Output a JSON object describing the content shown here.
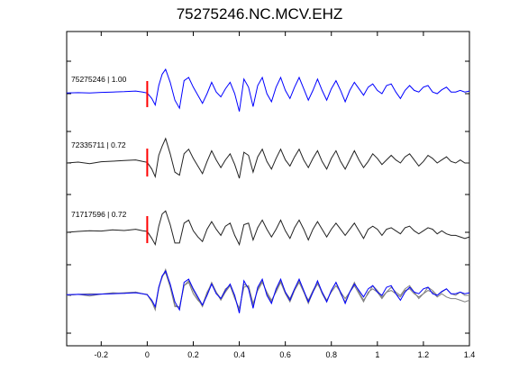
{
  "chart_data": {
    "type": "line",
    "title": "75275246.NC.MCV.EHZ",
    "xlim": [
      -0.35,
      1.4
    ],
    "x_ticks": [
      "-0.2",
      "0",
      "0.2",
      "0.4",
      "0.6",
      "0.8",
      "1",
      "1.2",
      "1.4"
    ],
    "x_tick_values": [
      -0.2,
      0,
      0.2,
      0.4,
      0.6,
      0.8,
      1.0,
      1.2,
      1.4
    ],
    "ylabel": "",
    "xlabel": "",
    "grid": false,
    "pick_time": 0,
    "colors": {
      "blue": "#0000ff",
      "black": "#222222",
      "gray": "#808080",
      "pick": "#ff0000"
    },
    "traces": [
      {
        "label": "75275246 | 1.00",
        "color": "#0000ff",
        "baseline": 0,
        "x": [
          -0.35,
          -0.3,
          -0.25,
          -0.2,
          -0.15,
          -0.1,
          -0.05,
          -0.02,
          0,
          0.02,
          0.035,
          0.05,
          0.065,
          0.08,
          0.1,
          0.12,
          0.14,
          0.16,
          0.18,
          0.2,
          0.22,
          0.24,
          0.26,
          0.28,
          0.3,
          0.32,
          0.34,
          0.36,
          0.38,
          0.4,
          0.42,
          0.44,
          0.46,
          0.48,
          0.5,
          0.52,
          0.54,
          0.56,
          0.58,
          0.6,
          0.62,
          0.64,
          0.66,
          0.68,
          0.7,
          0.72,
          0.74,
          0.76,
          0.78,
          0.8,
          0.82,
          0.84,
          0.86,
          0.88,
          0.9,
          0.92,
          0.94,
          0.96,
          0.98,
          1.0,
          1.02,
          1.04,
          1.06,
          1.08,
          1.1,
          1.12,
          1.14,
          1.16,
          1.18,
          1.2,
          1.22,
          1.24,
          1.26,
          1.28,
          1.3,
          1.32,
          1.34,
          1.36,
          1.38,
          1.4
        ],
        "y": [
          0.02,
          0.03,
          0.02,
          0.04,
          0.05,
          0.06,
          0.08,
          0.05,
          0.02,
          -0.15,
          -0.35,
          0.25,
          0.6,
          0.75,
          0.35,
          -0.2,
          -0.45,
          0.4,
          0.5,
          0.2,
          -0.05,
          -0.3,
          0.0,
          0.35,
          0.05,
          -0.1,
          0.15,
          0.35,
          0.0,
          -0.55,
          0.45,
          0.2,
          -0.4,
          0.25,
          0.5,
          0.0,
          -0.25,
          0.2,
          0.5,
          0.1,
          -0.15,
          0.2,
          0.5,
          0.15,
          -0.2,
          0.1,
          0.45,
          0.1,
          -0.2,
          0.15,
          0.4,
          0.1,
          -0.25,
          0.1,
          0.35,
          0.15,
          -0.05,
          0.2,
          0.3,
          0.1,
          0.0,
          0.25,
          0.3,
          0.05,
          -0.15,
          0.1,
          0.25,
          0.1,
          0.05,
          0.2,
          0.25,
          0.05,
          0.0,
          0.12,
          0.2,
          0.05,
          0.05,
          0.1,
          0.05,
          0.08
        ]
      },
      {
        "label": "72335711 | 0.72",
        "color": "#222222",
        "baseline": 1,
        "x": [
          -0.35,
          -0.3,
          -0.25,
          -0.2,
          -0.15,
          -0.1,
          -0.05,
          -0.02,
          0,
          0.02,
          0.035,
          0.05,
          0.065,
          0.08,
          0.1,
          0.12,
          0.14,
          0.16,
          0.18,
          0.2,
          0.22,
          0.24,
          0.26,
          0.28,
          0.3,
          0.32,
          0.34,
          0.36,
          0.38,
          0.4,
          0.42,
          0.44,
          0.46,
          0.48,
          0.5,
          0.52,
          0.54,
          0.56,
          0.58,
          0.6,
          0.62,
          0.64,
          0.66,
          0.68,
          0.7,
          0.72,
          0.74,
          0.76,
          0.78,
          0.8,
          0.82,
          0.84,
          0.86,
          0.88,
          0.9,
          0.92,
          0.94,
          0.96,
          0.98,
          1.0,
          1.02,
          1.04,
          1.06,
          1.08,
          1.1,
          1.12,
          1.14,
          1.16,
          1.18,
          1.2,
          1.22,
          1.24,
          1.26,
          1.28,
          1.3,
          1.32,
          1.34,
          1.36,
          1.38,
          1.4
        ],
        "y": [
          0.0,
          0.03,
          -0.02,
          0.04,
          0.06,
          0.08,
          0.1,
          0.05,
          0.02,
          -0.2,
          -0.45,
          0.25,
          0.55,
          0.8,
          0.3,
          -0.3,
          -0.4,
          0.3,
          0.45,
          0.15,
          -0.1,
          -0.35,
          0.05,
          0.4,
          0.1,
          -0.15,
          0.1,
          0.3,
          -0.05,
          -0.5,
          0.35,
          0.25,
          -0.3,
          0.2,
          0.45,
          0.05,
          -0.2,
          0.15,
          0.45,
          0.1,
          -0.1,
          0.2,
          0.45,
          0.1,
          -0.15,
          0.15,
          0.4,
          0.05,
          -0.2,
          0.15,
          0.4,
          0.05,
          -0.2,
          0.1,
          0.4,
          0.1,
          -0.15,
          0.05,
          0.3,
          0.15,
          -0.05,
          0.1,
          0.25,
          0.1,
          0.0,
          0.2,
          0.3,
          0.1,
          -0.1,
          0.05,
          0.25,
          0.15,
          0.0,
          0.1,
          0.2,
          0.05,
          0.0,
          0.1,
          0.0,
          0.0
        ]
      },
      {
        "label": "71717596 | 0.72",
        "color": "#222222",
        "baseline": 2,
        "x": [
          -0.35,
          -0.3,
          -0.25,
          -0.2,
          -0.15,
          -0.1,
          -0.05,
          -0.02,
          0,
          0.02,
          0.035,
          0.05,
          0.065,
          0.08,
          0.1,
          0.12,
          0.14,
          0.16,
          0.18,
          0.2,
          0.22,
          0.24,
          0.26,
          0.28,
          0.3,
          0.32,
          0.34,
          0.36,
          0.38,
          0.4,
          0.42,
          0.44,
          0.46,
          0.48,
          0.5,
          0.52,
          0.54,
          0.56,
          0.58,
          0.6,
          0.62,
          0.64,
          0.66,
          0.68,
          0.7,
          0.72,
          0.74,
          0.76,
          0.78,
          0.8,
          0.82,
          0.84,
          0.86,
          0.88,
          0.9,
          0.92,
          0.94,
          0.96,
          0.98,
          1.0,
          1.02,
          1.04,
          1.06,
          1.08,
          1.1,
          1.12,
          1.14,
          1.16,
          1.18,
          1.2,
          1.22,
          1.24,
          1.26,
          1.28,
          1.3,
          1.32,
          1.34,
          1.36,
          1.38,
          1.4
        ],
        "y": [
          0.0,
          0.03,
          0.05,
          0.04,
          0.08,
          0.06,
          0.1,
          0.05,
          0.03,
          -0.2,
          -0.4,
          0.2,
          0.6,
          0.7,
          0.25,
          -0.35,
          -0.35,
          0.3,
          0.4,
          0.05,
          -0.15,
          -0.3,
          0.1,
          0.35,
          0.1,
          -0.1,
          0.2,
          0.3,
          -0.1,
          -0.4,
          0.25,
          0.3,
          -0.25,
          0.15,
          0.4,
          0.1,
          -0.15,
          0.1,
          0.4,
          0.05,
          -0.2,
          0.15,
          0.4,
          0.1,
          -0.25,
          0.1,
          0.35,
          0.1,
          -0.15,
          0.1,
          0.3,
          0.1,
          -0.1,
          0.1,
          0.3,
          0.05,
          -0.2,
          0.1,
          0.2,
          0.1,
          -0.1,
          0.1,
          0.15,
          0.05,
          -0.05,
          0.15,
          0.2,
          0.05,
          -0.05,
          0.05,
          0.15,
          0.1,
          -0.05,
          0.05,
          -0.05,
          -0.1,
          -0.1,
          -0.15,
          -0.2,
          -0.15
        ]
      }
    ],
    "overlay": {
      "baseline": 3,
      "colors": [
        "#808080",
        "#808080",
        "#0000ff"
      ]
    }
  }
}
